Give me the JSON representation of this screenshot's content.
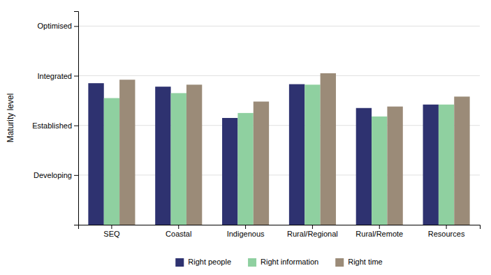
{
  "chart_data": {
    "type": "bar",
    "categories": [
      "SEQ",
      "Coastal",
      "Indigenous",
      "Rural/Regional",
      "Rural/Remote",
      "Resources"
    ],
    "series": [
      {
        "name": "Right people",
        "color": "#2E3270",
        "values": [
          2.85,
          2.78,
          2.15,
          2.83,
          2.35,
          2.42
        ]
      },
      {
        "name": "Right information",
        "color": "#8FD0A0",
        "values": [
          2.55,
          2.65,
          2.25,
          2.82,
          2.18,
          2.42
        ]
      },
      {
        "name": "Right time",
        "color": "#9B8B78",
        "values": [
          2.92,
          2.82,
          2.48,
          3.05,
          2.38,
          2.58
        ]
      }
    ],
    "ylabel": "Maturity level",
    "ylim": [
      0,
      4.3
    ],
    "yticks": [
      {
        "value": 1,
        "label": "Developing"
      },
      {
        "value": 2,
        "label": "Established"
      },
      {
        "value": 3,
        "label": "Integrated"
      },
      {
        "value": 4,
        "label": "Optimised"
      }
    ],
    "grid": true,
    "legend": "bottom"
  }
}
